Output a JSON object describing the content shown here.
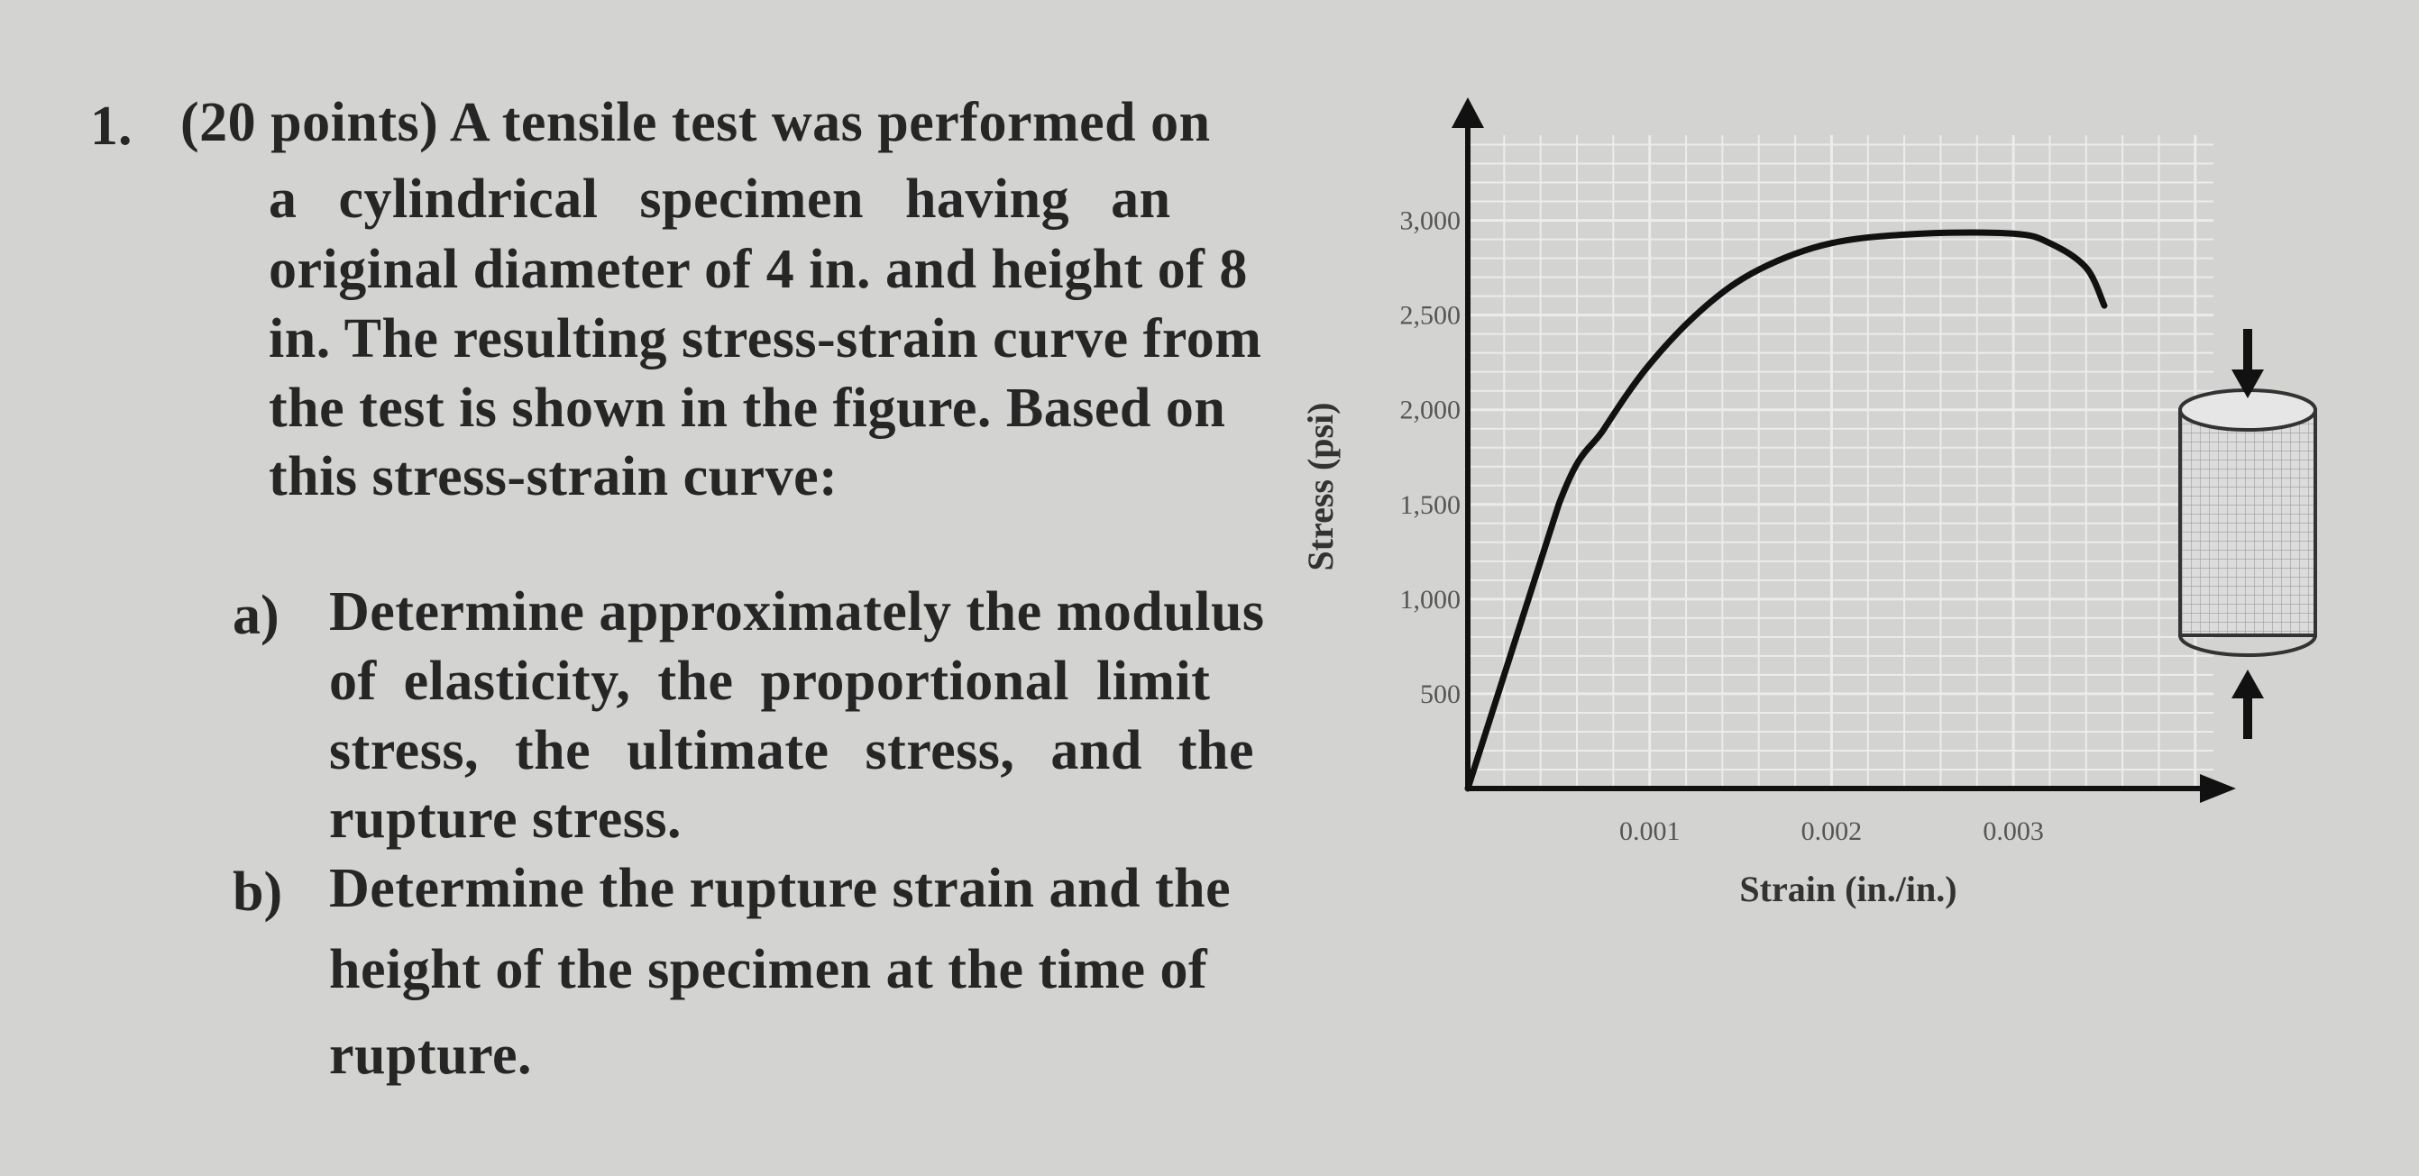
{
  "problem": {
    "number": "1.",
    "intro_lines": [
      "(20 points) A tensile test was performed on",
      "a cylindrical specimen having an",
      "original diameter of 4 in. and height of 8",
      "in. The resulting stress-strain curve from",
      "the test is shown in the figure. Based on",
      "this stress-strain curve:"
    ],
    "parts": [
      {
        "label": "a)",
        "lines": [
          "Determine approximately the modulus",
          "of elasticity, the proportional limit",
          "stress, the ultimate stress, and the",
          "rupture stress."
        ]
      },
      {
        "label": "b)",
        "lines": [
          "Determine the rupture strain and the",
          "height of the specimen at the time of",
          "rupture."
        ]
      }
    ]
  },
  "chart_data": {
    "type": "line",
    "xlabel": "Strain (in./in.)",
    "ylabel": "Stress (psi)",
    "x_ticks": [
      "0.001",
      "0.002",
      "0.003"
    ],
    "y_ticks": [
      "500",
      "1,000",
      "1,500",
      "2,000",
      "2,500",
      "3,000"
    ],
    "xlim": [
      0,
      0.0041
    ],
    "ylim": [
      0,
      3450
    ],
    "grid": true,
    "series": [
      {
        "x": [
          0,
          0.0005,
          0.00075,
          0.001,
          0.0013,
          0.0016,
          0.002,
          0.0025,
          0.003,
          0.0032,
          0.0034,
          0.0035
        ],
        "values": [
          0,
          1500,
          1900,
          2240,
          2540,
          2740,
          2880,
          2930,
          2930,
          2880,
          2750,
          2550
        ]
      }
    ],
    "annotations": [
      "specimen-cylinder",
      "compression-arrow-top",
      "compression-arrow-bottom"
    ]
  }
}
